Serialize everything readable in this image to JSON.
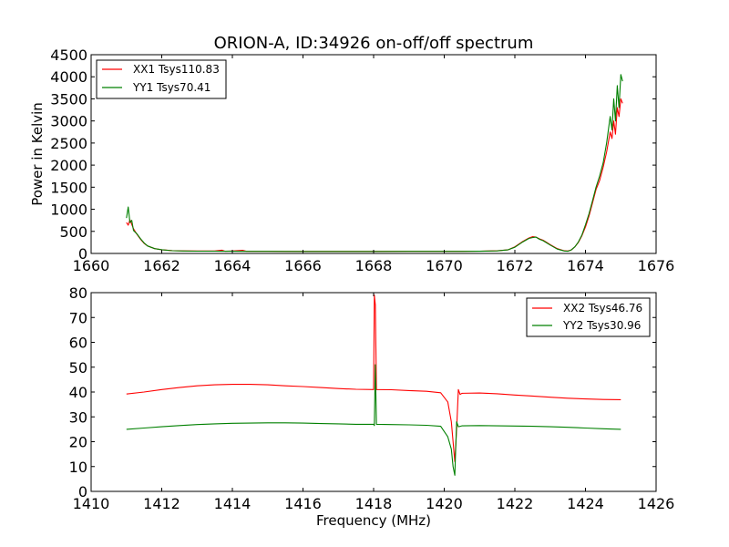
{
  "chart_data": [
    {
      "type": "line",
      "title": "ORION-A, ID:34926 on-off/off spectrum",
      "xlabel": "",
      "ylabel": "Power in Kelvin",
      "xlim": [
        1660,
        1676
      ],
      "ylim": [
        0,
        4500
      ],
      "xticks": [
        "1660",
        "1662",
        "1664",
        "1666",
        "1668",
        "1670",
        "1672",
        "1674",
        "1676"
      ],
      "yticks": [
        "0",
        "500",
        "1000",
        "1500",
        "2000",
        "2500",
        "3000",
        "3500",
        "4000",
        "4500"
      ],
      "legend_position": "top-left",
      "series": [
        {
          "name": "XX1 Tsys110.83",
          "color": "#ff0000",
          "points": [
            [
              1661.0,
              700
            ],
            [
              1661.05,
              640
            ],
            [
              1661.1,
              760
            ],
            [
              1661.2,
              560
            ],
            [
              1661.3,
              430
            ],
            [
              1661.4,
              320
            ],
            [
              1661.5,
              230
            ],
            [
              1661.6,
              170
            ],
            [
              1661.8,
              110
            ],
            [
              1662.0,
              85
            ],
            [
              1662.3,
              65
            ],
            [
              1662.6,
              58
            ],
            [
              1663.0,
              55
            ],
            [
              1663.5,
              55
            ],
            [
              1663.7,
              75
            ],
            [
              1663.8,
              50
            ],
            [
              1664.0,
              55
            ],
            [
              1664.3,
              70
            ],
            [
              1664.4,
              50
            ],
            [
              1665.0,
              50
            ],
            [
              1665.5,
              48
            ],
            [
              1666.0,
              48
            ],
            [
              1667.0,
              47
            ],
            [
              1668.0,
              48
            ],
            [
              1669.0,
              50
            ],
            [
              1670.0,
              50
            ],
            [
              1671.0,
              52
            ],
            [
              1671.5,
              60
            ],
            [
              1671.8,
              80
            ],
            [
              1672.0,
              150
            ],
            [
              1672.2,
              260
            ],
            [
              1672.4,
              350
            ],
            [
              1672.5,
              380
            ],
            [
              1672.6,
              370
            ],
            [
              1672.7,
              330
            ],
            [
              1672.8,
              300
            ],
            [
              1672.9,
              250
            ],
            [
              1673.0,
              200
            ],
            [
              1673.2,
              110
            ],
            [
              1673.4,
              60
            ],
            [
              1673.5,
              55
            ],
            [
              1673.6,
              80
            ],
            [
              1673.7,
              150
            ],
            [
              1673.8,
              250
            ],
            [
              1673.9,
              400
            ],
            [
              1674.0,
              600
            ],
            [
              1674.1,
              850
            ],
            [
              1674.2,
              1150
            ],
            [
              1674.3,
              1450
            ],
            [
              1674.4,
              1650
            ],
            [
              1674.5,
              1950
            ],
            [
              1674.6,
              2300
            ],
            [
              1674.7,
              2750
            ],
            [
              1674.75,
              2600
            ],
            [
              1674.8,
              3000
            ],
            [
              1674.85,
              2700
            ],
            [
              1674.9,
              3300
            ],
            [
              1674.95,
              3100
            ],
            [
              1675.0,
              3500
            ],
            [
              1675.05,
              3400
            ]
          ]
        },
        {
          "name": "YY1 Tsys70.41",
          "color": "#008000",
          "points": [
            [
              1661.0,
              800
            ],
            [
              1661.05,
              1050
            ],
            [
              1661.1,
              700
            ],
            [
              1661.15,
              750
            ],
            [
              1661.2,
              520
            ],
            [
              1661.3,
              440
            ],
            [
              1661.4,
              330
            ],
            [
              1661.5,
              240
            ],
            [
              1661.6,
              170
            ],
            [
              1661.8,
              110
            ],
            [
              1662.0,
              85
            ],
            [
              1662.3,
              62
            ],
            [
              1662.6,
              55
            ],
            [
              1663.0,
              52
            ],
            [
              1663.5,
              52
            ],
            [
              1664.0,
              50
            ],
            [
              1664.5,
              48
            ],
            [
              1665.0,
              48
            ],
            [
              1666.0,
              45
            ],
            [
              1667.0,
              45
            ],
            [
              1668.0,
              45
            ],
            [
              1669.0,
              47
            ],
            [
              1670.0,
              48
            ],
            [
              1671.0,
              50
            ],
            [
              1671.5,
              58
            ],
            [
              1671.8,
              80
            ],
            [
              1672.0,
              140
            ],
            [
              1672.2,
              250
            ],
            [
              1672.4,
              340
            ],
            [
              1672.5,
              360
            ],
            [
              1672.6,
              370
            ],
            [
              1672.7,
              320
            ],
            [
              1672.8,
              290
            ],
            [
              1672.9,
              240
            ],
            [
              1673.0,
              190
            ],
            [
              1673.2,
              100
            ],
            [
              1673.4,
              55
            ],
            [
              1673.5,
              50
            ],
            [
              1673.6,
              80
            ],
            [
              1673.7,
              150
            ],
            [
              1673.8,
              260
            ],
            [
              1673.9,
              420
            ],
            [
              1674.0,
              650
            ],
            [
              1674.1,
              900
            ],
            [
              1674.2,
              1200
            ],
            [
              1674.3,
              1500
            ],
            [
              1674.4,
              1750
            ],
            [
              1674.5,
              2050
            ],
            [
              1674.6,
              2500
            ],
            [
              1674.7,
              3100
            ],
            [
              1674.75,
              2800
            ],
            [
              1674.8,
              3500
            ],
            [
              1674.85,
              3000
            ],
            [
              1674.9,
              3800
            ],
            [
              1674.95,
              3300
            ],
            [
              1675.0,
              4050
            ],
            [
              1675.05,
              3900
            ]
          ]
        }
      ]
    },
    {
      "type": "line",
      "title": "",
      "xlabel": "Frequency (MHz)",
      "ylabel": "",
      "xlim": [
        1410,
        1426
      ],
      "ylim": [
        0,
        80
      ],
      "xticks": [
        "1410",
        "1412",
        "1414",
        "1416",
        "1418",
        "1420",
        "1422",
        "1424",
        "1426"
      ],
      "yticks": [
        "0",
        "10",
        "20",
        "30",
        "40",
        "50",
        "60",
        "70",
        "80"
      ],
      "legend_position": "top-right",
      "series": [
        {
          "name": "XX2 Tsys46.76",
          "color": "#ff0000",
          "points": [
            [
              1411.0,
              39.2
            ],
            [
              1411.5,
              40.0
            ],
            [
              1412.0,
              41.0
            ],
            [
              1412.5,
              41.8
            ],
            [
              1413.0,
              42.5
            ],
            [
              1413.5,
              42.9
            ],
            [
              1414.0,
              43.1
            ],
            [
              1414.5,
              43.1
            ],
            [
              1415.0,
              42.9
            ],
            [
              1415.5,
              42.5
            ],
            [
              1416.0,
              42.2
            ],
            [
              1416.5,
              41.8
            ],
            [
              1417.0,
              41.4
            ],
            [
              1417.5,
              41.1
            ],
            [
              1418.0,
              41.0
            ],
            [
              1418.02,
              79.0
            ],
            [
              1418.05,
              75.0
            ],
            [
              1418.08,
              41.0
            ],
            [
              1418.5,
              40.9
            ],
            [
              1419.0,
              40.6
            ],
            [
              1419.5,
              40.3
            ],
            [
              1419.9,
              39.7
            ],
            [
              1420.1,
              36.0
            ],
            [
              1420.2,
              28.0
            ],
            [
              1420.25,
              20.0
            ],
            [
              1420.3,
              12.0
            ],
            [
              1420.35,
              25.0
            ],
            [
              1420.4,
              41.0
            ],
            [
              1420.45,
              39.0
            ],
            [
              1420.5,
              39.5
            ],
            [
              1421.0,
              39.6
            ],
            [
              1421.5,
              39.3
            ],
            [
              1422.0,
              38.8
            ],
            [
              1422.5,
              38.4
            ],
            [
              1423.0,
              37.9
            ],
            [
              1423.5,
              37.5
            ],
            [
              1424.0,
              37.2
            ],
            [
              1424.5,
              37.0
            ],
            [
              1425.0,
              36.9
            ]
          ]
        },
        {
          "name": "YY2 Tsys30.96",
          "color": "#008000",
          "points": [
            [
              1411.0,
              25.0
            ],
            [
              1411.5,
              25.5
            ],
            [
              1412.0,
              26.0
            ],
            [
              1412.5,
              26.5
            ],
            [
              1413.0,
              26.9
            ],
            [
              1413.5,
              27.2
            ],
            [
              1414.0,
              27.4
            ],
            [
              1414.5,
              27.5
            ],
            [
              1415.0,
              27.6
            ],
            [
              1415.5,
              27.6
            ],
            [
              1416.0,
              27.5
            ],
            [
              1416.5,
              27.3
            ],
            [
              1417.0,
              27.2
            ],
            [
              1417.5,
              27.0
            ],
            [
              1418.0,
              27.0
            ],
            [
              1418.02,
              26.5
            ],
            [
              1418.05,
              51.0
            ],
            [
              1418.08,
              27.0
            ],
            [
              1418.5,
              26.9
            ],
            [
              1419.0,
              26.8
            ],
            [
              1419.5,
              26.6
            ],
            [
              1419.9,
              26.2
            ],
            [
              1420.1,
              22.0
            ],
            [
              1420.2,
              17.0
            ],
            [
              1420.25,
              10.0
            ],
            [
              1420.3,
              6.5
            ],
            [
              1420.35,
              28.0
            ],
            [
              1420.4,
              26.0
            ],
            [
              1420.5,
              26.4
            ],
            [
              1421.0,
              26.5
            ],
            [
              1421.5,
              26.4
            ],
            [
              1422.0,
              26.3
            ],
            [
              1422.5,
              26.2
            ],
            [
              1423.0,
              26.0
            ],
            [
              1423.5,
              25.8
            ],
            [
              1424.0,
              25.5
            ],
            [
              1424.5,
              25.2
            ],
            [
              1425.0,
              25.0
            ]
          ]
        }
      ]
    }
  ]
}
